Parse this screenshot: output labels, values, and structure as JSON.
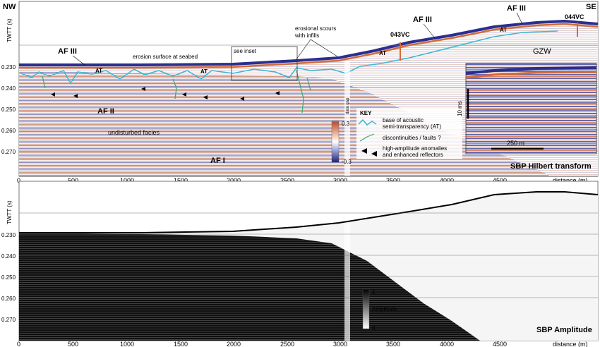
{
  "top": {
    "corner_left": "NW",
    "corner_right": "SE",
    "title": "SBP Hilbert transform",
    "y_axis_label": "TWTT (s)",
    "y_ticks": [
      "0.230",
      "0.240",
      "0.250",
      "0.260",
      "0.270"
    ],
    "x_ticks": [
      "0",
      "500",
      "1000",
      "1500",
      "2000",
      "2500",
      "3000",
      "3500",
      "4000",
      "4500"
    ],
    "x_axis_label": "distance (m)",
    "annotations": {
      "af3_left": "AF III",
      "af3_mid": "AF III",
      "af3_right": "AF III",
      "af2": "AF II",
      "af1": "AF I",
      "erosion_surface": "erosion surface at seabed",
      "see_inset": "see inset",
      "scours_line1": "erosional scours",
      "scours_line2": "with infills",
      "core_043": "043VC",
      "core_044": "044VC",
      "gzw": "GZW",
      "at1": "AT",
      "at2": "AT",
      "at3": "AT",
      "at4": "AT",
      "undisturbed": "undisturbed facies",
      "hidden_label": "data gap"
    },
    "colorbar": {
      "max": "0.3",
      "min": "-0.3"
    },
    "key": {
      "title": "KEY",
      "item1_line1": "base of acoustic",
      "item1_line2": "semi-transparency (AT)",
      "item2": "discontinuities / faults ?",
      "item3_line1": "high-amplitude anomalies",
      "item3_line2": "and enhanced reflectors"
    },
    "inset": {
      "scale_v": "10 ms",
      "scale_h": "250 m"
    }
  },
  "bottom": {
    "title": "SBP Amplitude",
    "y_axis_label": "TWTT (s)",
    "y_ticks": [
      "0.230",
      "0.240",
      "0.250",
      "0.260",
      "0.270"
    ],
    "x_ticks": [
      "0",
      "500",
      "1000",
      "1500",
      "2000",
      "2500",
      "3000",
      "3500",
      "4000",
      "4500"
    ],
    "x_axis_label": "distance (m)",
    "colorbar": {
      "max": "1",
      "label": "Amplitude",
      "min": "0"
    }
  },
  "colors": {
    "blue": "#2a2f8f",
    "orange": "#d46a3a",
    "cyan": "#3fb8d8",
    "green": "#3aa86a"
  }
}
